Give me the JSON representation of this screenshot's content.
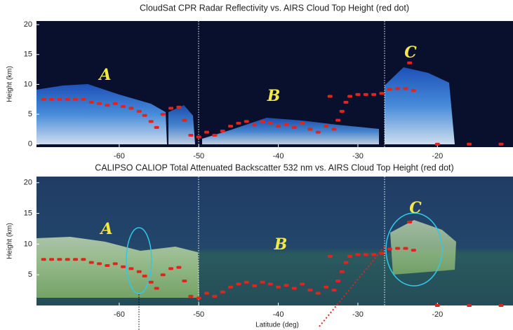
{
  "chart_data": [
    {
      "type": "scatter",
      "title": "CloudSat CPR Radar Reflectivity vs. AIRS Cloud Top Height (red dot)",
      "y_label": "Height (km)",
      "annotations": [
        "A",
        "B",
        "C"
      ],
      "color": "#e3241c",
      "x": [
        -69.5,
        -68.5,
        -67.5,
        -66.5,
        -65.5,
        -64.5,
        -63.5,
        -62.5,
        -61.5,
        -60.5,
        -59.5,
        -58.5,
        -57.5,
        -56.8,
        -56.0,
        -55.3,
        -54.5,
        -53.5,
        -52.5,
        -51.8,
        -51.0,
        -50.0,
        -49.0,
        -48.0,
        -47.0,
        -46.0,
        -45.0,
        -44.0,
        -43.0,
        -42.0,
        -41.0,
        -40.0,
        -39.0,
        -38.0,
        -37.0,
        -36.0,
        -35.0,
        -34.0,
        -33.5,
        -33.0,
        -32.5,
        -32.0,
        -31.5,
        -31.0,
        -30.0,
        -29.0,
        -28.0,
        -27.0,
        -26.0,
        -25.0,
        -24.0,
        -23.5,
        -23.0,
        -20.0,
        -16.0,
        -12.0
      ],
      "values": [
        7.5,
        7.5,
        7.5,
        7.5,
        7.5,
        7.5,
        7.0,
        6.8,
        6.5,
        6.8,
        6.3,
        6.0,
        5.5,
        4.8,
        3.8,
        2.8,
        5.0,
        6.0,
        6.2,
        4.0,
        1.5,
        1.2,
        2.0,
        1.5,
        2.2,
        3.0,
        3.5,
        3.8,
        3.2,
        3.8,
        3.5,
        3.0,
        3.3,
        2.8,
        3.5,
        2.5,
        2.0,
        3.0,
        8.0,
        2.5,
        4.0,
        5.5,
        7.0,
        8.0,
        8.3,
        8.3,
        8.3,
        8.5,
        9.2,
        9.3,
        9.3,
        13.6,
        9.0,
        0,
        0,
        0
      ],
      "xlim": [
        -70.4,
        -10.5
      ],
      "ylim": [
        -0.5,
        20.6
      ],
      "xticks": [
        -60,
        -50,
        -40,
        -30,
        -20
      ],
      "yticks": [
        0,
        5,
        10,
        15,
        20
      ]
    },
    {
      "type": "scatter",
      "title": "CALIPSO CALIOP Total Attenuated Backscatter 532 nm vs. AIRS Cloud Top Height (red dot)",
      "y_label": "Height (km)",
      "x_label": "Latitude (deg)",
      "annotations": [
        "A",
        "B",
        "C"
      ],
      "color": "#e3241c",
      "x": [
        -69.5,
        -68.5,
        -67.5,
        -66.5,
        -65.5,
        -64.5,
        -63.5,
        -62.5,
        -61.5,
        -60.5,
        -59.5,
        -58.5,
        -57.5,
        -56.8,
        -56.0,
        -55.3,
        -54.5,
        -53.5,
        -52.5,
        -51.8,
        -51.0,
        -50.0,
        -49.0,
        -48.0,
        -47.0,
        -46.0,
        -45.0,
        -44.0,
        -43.0,
        -42.0,
        -41.0,
        -40.0,
        -39.0,
        -38.0,
        -37.0,
        -36.0,
        -35.0,
        -34.0,
        -33.5,
        -33.0,
        -32.5,
        -32.0,
        -31.5,
        -31.0,
        -30.0,
        -29.0,
        -28.0,
        -27.0,
        -26.0,
        -25.0,
        -24.0,
        -23.5,
        -23.0,
        -20.0,
        -16.0,
        -12.0
      ],
      "values": [
        7.5,
        7.5,
        7.5,
        7.5,
        7.5,
        7.5,
        7.0,
        6.8,
        6.5,
        6.8,
        6.3,
        6.0,
        5.5,
        4.8,
        3.8,
        2.8,
        5.0,
        6.0,
        6.2,
        4.0,
        1.5,
        1.2,
        2.0,
        1.5,
        2.2,
        3.0,
        3.5,
        3.8,
        3.2,
        3.8,
        3.5,
        3.0,
        3.3,
        2.8,
        3.5,
        2.5,
        2.0,
        3.0,
        8.0,
        2.5,
        4.0,
        5.5,
        7.0,
        8.0,
        8.3,
        8.3,
        8.3,
        8.5,
        9.2,
        9.3,
        9.3,
        13.6,
        9.0,
        0,
        0,
        0
      ],
      "xlim": [
        -70.4,
        -10.5
      ],
      "ylim": [
        0,
        21
      ],
      "xticks": [
        -60,
        -50,
        -40,
        -30,
        -20
      ],
      "yticks": [
        5,
        10,
        15,
        20
      ]
    }
  ]
}
